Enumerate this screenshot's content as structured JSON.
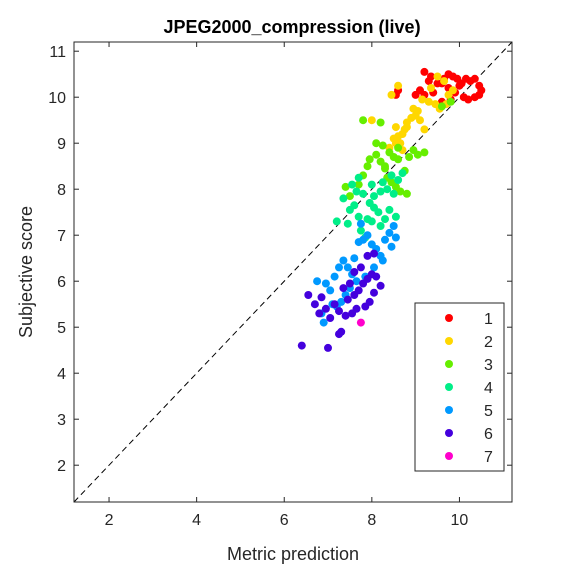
{
  "chart_data": {
    "type": "scatter",
    "title": "JPEG2000_compression (live)",
    "xlabel": "Metric prediction",
    "ylabel": "Subjective score",
    "xlim": [
      1.2,
      11.2
    ],
    "ylim": [
      1.2,
      11.2
    ],
    "xticks": [
      "2",
      "4",
      "6",
      "8",
      "10"
    ],
    "yticks": [
      "2",
      "3",
      "4",
      "5",
      "6",
      "7",
      "8",
      "9",
      "10",
      "11"
    ],
    "grid": false,
    "reference_line": "dashed diagonal y = x",
    "legend_position": "bottom-right",
    "series": [
      {
        "name": "1",
        "color": "#ff0000",
        "points": [
          [
            9.2,
            10.55
          ],
          [
            9.35,
            10.45
          ],
          [
            9.5,
            10.3
          ],
          [
            9.65,
            10.4
          ],
          [
            9.75,
            10.5
          ],
          [
            9.85,
            10.45
          ],
          [
            9.95,
            10.4
          ],
          [
            10.05,
            10.3
          ],
          [
            10.15,
            10.4
          ],
          [
            10.25,
            10.35
          ],
          [
            10.35,
            10.4
          ],
          [
            10.45,
            10.25
          ],
          [
            10.5,
            10.15
          ],
          [
            10.45,
            10.05
          ],
          [
            10.35,
            10.0
          ],
          [
            10.2,
            9.95
          ],
          [
            10.1,
            10.0
          ],
          [
            9.9,
            10.1
          ],
          [
            9.75,
            10.2
          ],
          [
            9.6,
            10.3
          ],
          [
            9.4,
            10.1
          ],
          [
            9.2,
            10.05
          ],
          [
            9.1,
            10.15
          ],
          [
            9.0,
            10.05
          ],
          [
            8.6,
            10.15
          ],
          [
            8.55,
            10.05
          ],
          [
            9.8,
            9.95
          ],
          [
            9.6,
            9.9
          ],
          [
            10.0,
            10.25
          ],
          [
            9.3,
            10.35
          ]
        ]
      },
      {
        "name": "2",
        "color": "#ffd700",
        "points": [
          [
            8.0,
            9.5
          ],
          [
            8.55,
            9.35
          ],
          [
            8.7,
            9.2
          ],
          [
            8.6,
            9.15
          ],
          [
            8.5,
            9.1
          ],
          [
            8.65,
            9.0
          ],
          [
            8.75,
            9.3
          ],
          [
            8.8,
            9.45
          ],
          [
            8.9,
            9.55
          ],
          [
            9.0,
            9.6
          ],
          [
            9.05,
            9.7
          ],
          [
            9.15,
            9.95
          ],
          [
            9.3,
            9.9
          ],
          [
            9.45,
            9.85
          ],
          [
            9.55,
            9.75
          ],
          [
            9.7,
            9.85
          ],
          [
            9.75,
            10.05
          ],
          [
            9.65,
            10.35
          ],
          [
            9.5,
            10.45
          ],
          [
            9.85,
            10.15
          ],
          [
            8.45,
            10.05
          ],
          [
            8.6,
            10.25
          ],
          [
            9.1,
            9.5
          ],
          [
            8.4,
            8.9
          ],
          [
            8.55,
            9.0
          ],
          [
            8.7,
            8.85
          ],
          [
            8.8,
            9.35
          ],
          [
            9.35,
            10.2
          ],
          [
            9.2,
            9.3
          ],
          [
            8.95,
            9.75
          ]
        ]
      },
      {
        "name": "3",
        "color": "#66ee00",
        "points": [
          [
            7.4,
            8.05
          ],
          [
            7.5,
            7.85
          ],
          [
            7.7,
            8.1
          ],
          [
            7.8,
            8.3
          ],
          [
            7.9,
            8.5
          ],
          [
            7.95,
            8.65
          ],
          [
            8.1,
            8.75
          ],
          [
            8.2,
            8.6
          ],
          [
            8.3,
            8.45
          ],
          [
            8.35,
            8.25
          ],
          [
            8.45,
            8.15
          ],
          [
            8.55,
            8.05
          ],
          [
            8.65,
            7.95
          ],
          [
            8.8,
            7.9
          ],
          [
            8.85,
            8.7
          ],
          [
            8.95,
            8.85
          ],
          [
            9.05,
            8.75
          ],
          [
            8.75,
            8.4
          ],
          [
            8.6,
            8.65
          ],
          [
            8.5,
            8.7
          ],
          [
            8.4,
            8.8
          ],
          [
            8.25,
            8.95
          ],
          [
            8.1,
            9.0
          ],
          [
            8.2,
            9.45
          ],
          [
            7.8,
            9.5
          ],
          [
            9.2,
            8.8
          ],
          [
            9.6,
            9.8
          ],
          [
            9.8,
            9.9
          ],
          [
            8.6,
            8.9
          ],
          [
            8.3,
            8.5
          ]
        ]
      },
      {
        "name": "4",
        "color": "#00ee88",
        "points": [
          [
            7.2,
            7.3
          ],
          [
            7.45,
            7.25
          ],
          [
            7.5,
            7.55
          ],
          [
            7.6,
            7.65
          ],
          [
            7.7,
            7.4
          ],
          [
            7.75,
            7.1
          ],
          [
            7.85,
            6.95
          ],
          [
            7.9,
            7.35
          ],
          [
            8.0,
            7.3
          ],
          [
            8.05,
            7.6
          ],
          [
            8.15,
            7.5
          ],
          [
            8.2,
            7.2
          ],
          [
            8.3,
            7.35
          ],
          [
            8.4,
            7.55
          ],
          [
            8.55,
            7.4
          ],
          [
            8.5,
            7.9
          ],
          [
            8.35,
            8.0
          ],
          [
            8.2,
            7.95
          ],
          [
            8.05,
            7.85
          ],
          [
            7.95,
            7.7
          ],
          [
            7.8,
            7.9
          ],
          [
            7.65,
            7.95
          ],
          [
            7.55,
            8.1
          ],
          [
            7.7,
            8.25
          ],
          [
            8.0,
            8.1
          ],
          [
            8.25,
            8.15
          ],
          [
            8.6,
            8.2
          ],
          [
            8.7,
            8.35
          ],
          [
            8.45,
            8.3
          ],
          [
            7.35,
            7.8
          ]
        ]
      },
      {
        "name": "5",
        "color": "#0099ff",
        "points": [
          [
            6.75,
            6.0
          ],
          [
            6.85,
            5.3
          ],
          [
            6.9,
            5.1
          ],
          [
            6.95,
            5.95
          ],
          [
            7.05,
            5.8
          ],
          [
            7.15,
            6.1
          ],
          [
            7.25,
            6.3
          ],
          [
            7.35,
            6.45
          ],
          [
            7.45,
            6.3
          ],
          [
            7.55,
            6.15
          ],
          [
            7.6,
            6.5
          ],
          [
            7.7,
            6.85
          ],
          [
            7.8,
            6.9
          ],
          [
            7.9,
            7.0
          ],
          [
            8.0,
            6.8
          ],
          [
            8.1,
            6.7
          ],
          [
            8.2,
            6.55
          ],
          [
            8.3,
            6.9
          ],
          [
            8.4,
            7.05
          ],
          [
            8.5,
            7.2
          ],
          [
            8.55,
            6.95
          ],
          [
            8.45,
            6.75
          ],
          [
            8.25,
            6.45
          ],
          [
            8.05,
            6.3
          ],
          [
            7.85,
            6.1
          ],
          [
            7.65,
            6.0
          ],
          [
            7.5,
            5.85
          ],
          [
            7.4,
            5.7
          ],
          [
            7.3,
            5.55
          ],
          [
            7.2,
            5.45
          ],
          [
            7.1,
            5.5
          ],
          [
            7.75,
            7.25
          ]
        ]
      },
      {
        "name": "6",
        "color": "#4400dd",
        "points": [
          [
            6.4,
            4.6
          ],
          [
            6.55,
            5.7
          ],
          [
            6.7,
            5.5
          ],
          [
            6.8,
            5.3
          ],
          [
            6.85,
            5.65
          ],
          [
            6.95,
            5.4
          ],
          [
            7.0,
            4.55
          ],
          [
            7.05,
            5.2
          ],
          [
            7.15,
            5.5
          ],
          [
            7.25,
            4.85
          ],
          [
            7.3,
            4.9
          ],
          [
            7.35,
            5.85
          ],
          [
            7.45,
            5.6
          ],
          [
            7.5,
            5.95
          ],
          [
            7.6,
            5.7
          ],
          [
            7.7,
            5.8
          ],
          [
            7.8,
            5.95
          ],
          [
            7.9,
            6.05
          ],
          [
            8.0,
            6.15
          ],
          [
            8.1,
            6.1
          ],
          [
            8.2,
            5.9
          ],
          [
            8.05,
            5.75
          ],
          [
            7.95,
            5.55
          ],
          [
            7.85,
            5.45
          ],
          [
            7.65,
            5.4
          ],
          [
            7.55,
            5.3
          ],
          [
            7.4,
            5.25
          ],
          [
            7.25,
            5.35
          ],
          [
            7.75,
            6.3
          ],
          [
            7.9,
            6.55
          ],
          [
            8.05,
            6.6
          ],
          [
            7.6,
            6.2
          ]
        ]
      },
      {
        "name": "7",
        "color": "#ff00cc",
        "points": [
          [
            7.75,
            5.1
          ]
        ]
      }
    ]
  }
}
